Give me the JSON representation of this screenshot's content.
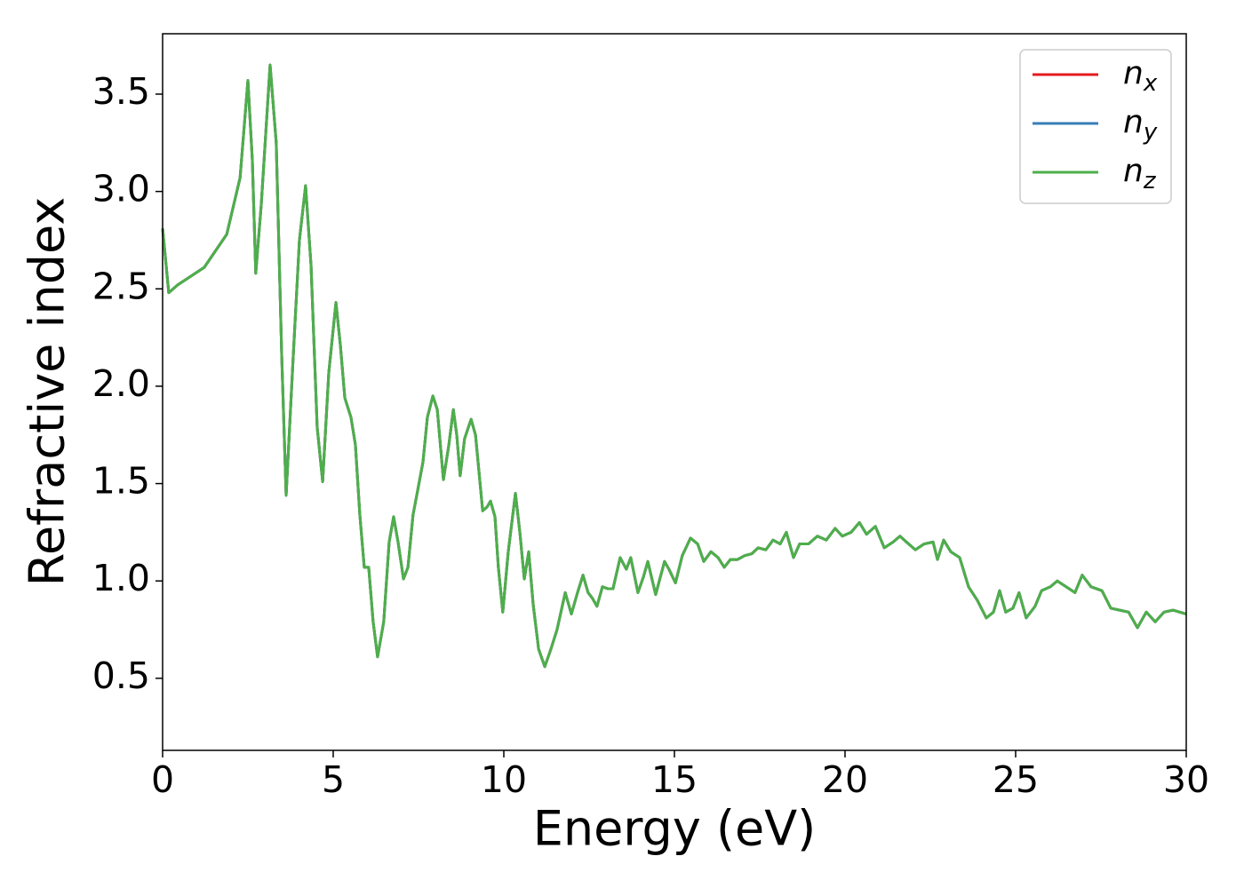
{
  "chart_data": {
    "type": "line",
    "xlabel": "Energy (eV)",
    "ylabel": "Refractive index",
    "x": [
      0,
      0.18,
      0.44,
      1.22,
      1.88,
      2.27,
      2.5,
      2.63,
      2.73,
      2.89,
      3.15,
      3.33,
      3.49,
      3.62,
      3.83,
      4.01,
      4.19,
      4.35,
      4.53,
      4.69,
      4.87,
      5.08,
      5.21,
      5.34,
      5.52,
      5.65,
      5.78,
      5.91,
      6.04,
      6.17,
      6.3,
      6.48,
      6.64,
      6.77,
      6.9,
      7.06,
      7.19,
      7.34,
      7.47,
      7.63,
      7.76,
      7.92,
      8.05,
      8.23,
      8.39,
      8.52,
      8.62,
      8.72,
      8.85,
      9.04,
      9.17,
      9.38,
      9.51,
      9.61,
      9.74,
      9.84,
      9.97,
      10.13,
      10.34,
      10.47,
      10.6,
      10.73,
      10.86,
      11.02,
      11.2,
      11.38,
      11.56,
      11.8,
      11.98,
      12.16,
      12.32,
      12.47,
      12.6,
      12.73,
      12.89,
      13.05,
      13.2,
      13.41,
      13.59,
      13.72,
      13.93,
      14.09,
      14.22,
      14.45,
      14.71,
      14.84,
      15.03,
      15.23,
      15.47,
      15.68,
      15.86,
      16.07,
      16.28,
      16.46,
      16.64,
      16.85,
      17.06,
      17.27,
      17.45,
      17.68,
      17.89,
      18.1,
      18.28,
      18.49,
      18.67,
      18.93,
      19.19,
      19.45,
      19.71,
      19.92,
      20.18,
      20.42,
      20.63,
      20.89,
      21.15,
      21.41,
      21.61,
      21.8,
      22.06,
      22.32,
      22.58,
      22.71,
      22.89,
      23.1,
      23.36,
      23.62,
      23.88,
      24.14,
      24.35,
      24.53,
      24.71,
      24.92,
      25.1,
      25.31,
      25.57,
      25.76,
      26.02,
      26.22,
      26.48,
      26.74,
      26.95,
      27.21,
      27.53,
      27.79,
      28.05,
      28.31,
      28.57,
      28.83,
      29.09,
      29.35,
      29.61,
      30
    ],
    "series": [
      {
        "name": "nx",
        "color": "#e41a1c",
        "values": [
          2.81,
          2.48,
          2.52,
          2.61,
          2.78,
          3.07,
          3.57,
          3.16,
          2.58,
          2.93,
          3.65,
          3.25,
          2.16,
          1.44,
          2.16,
          2.75,
          3.03,
          2.62,
          1.79,
          1.51,
          2.07,
          2.43,
          2.21,
          1.94,
          1.84,
          1.7,
          1.34,
          1.07,
          1.07,
          0.79,
          0.61,
          0.79,
          1.2,
          1.33,
          1.2,
          1.01,
          1.07,
          1.34,
          1.46,
          1.61,
          1.84,
          1.95,
          1.88,
          1.52,
          1.7,
          1.88,
          1.75,
          1.54,
          1.73,
          1.83,
          1.75,
          1.36,
          1.38,
          1.41,
          1.33,
          1.07,
          0.84,
          1.15,
          1.45,
          1.25,
          1.01,
          1.15,
          0.88,
          0.65,
          0.56,
          0.65,
          0.75,
          0.94,
          0.83,
          0.94,
          1.03,
          0.94,
          0.91,
          0.87,
          0.97,
          0.96,
          0.96,
          1.12,
          1.06,
          1.12,
          0.94,
          1.02,
          1.1,
          0.93,
          1.1,
          1.06,
          0.99,
          1.13,
          1.22,
          1.19,
          1.1,
          1.15,
          1.12,
          1.07,
          1.11,
          1.11,
          1.13,
          1.14,
          1.17,
          1.16,
          1.21,
          1.19,
          1.25,
          1.12,
          1.19,
          1.19,
          1.23,
          1.21,
          1.27,
          1.23,
          1.25,
          1.3,
          1.24,
          1.28,
          1.17,
          1.2,
          1.23,
          1.2,
          1.16,
          1.19,
          1.2,
          1.11,
          1.21,
          1.15,
          1.12,
          0.97,
          0.9,
          0.81,
          0.84,
          0.95,
          0.84,
          0.86,
          0.94,
          0.81,
          0.87,
          0.95,
          0.97,
          1.0,
          0.97,
          0.94,
          1.03,
          0.97,
          0.95,
          0.86,
          0.85,
          0.84,
          0.76,
          0.84,
          0.79,
          0.84,
          0.85,
          0.83
        ]
      },
      {
        "name": "ny",
        "color": "#377eb8",
        "values": [
          2.81,
          2.48,
          2.52,
          2.61,
          2.78,
          3.07,
          3.57,
          3.16,
          2.58,
          2.93,
          3.65,
          3.25,
          2.16,
          1.44,
          2.16,
          2.75,
          3.03,
          2.62,
          1.79,
          1.51,
          2.07,
          2.43,
          2.21,
          1.94,
          1.84,
          1.7,
          1.34,
          1.07,
          1.07,
          0.79,
          0.61,
          0.79,
          1.2,
          1.33,
          1.2,
          1.01,
          1.07,
          1.34,
          1.46,
          1.61,
          1.84,
          1.95,
          1.88,
          1.52,
          1.7,
          1.88,
          1.75,
          1.54,
          1.73,
          1.83,
          1.75,
          1.36,
          1.38,
          1.41,
          1.33,
          1.07,
          0.84,
          1.15,
          1.45,
          1.25,
          1.01,
          1.15,
          0.88,
          0.65,
          0.56,
          0.65,
          0.75,
          0.94,
          0.83,
          0.94,
          1.03,
          0.94,
          0.91,
          0.87,
          0.97,
          0.96,
          0.96,
          1.12,
          1.06,
          1.12,
          0.94,
          1.02,
          1.1,
          0.93,
          1.1,
          1.06,
          0.99,
          1.13,
          1.22,
          1.19,
          1.1,
          1.15,
          1.12,
          1.07,
          1.11,
          1.11,
          1.13,
          1.14,
          1.17,
          1.16,
          1.21,
          1.19,
          1.25,
          1.12,
          1.19,
          1.19,
          1.23,
          1.21,
          1.27,
          1.23,
          1.25,
          1.3,
          1.24,
          1.28,
          1.17,
          1.2,
          1.23,
          1.2,
          1.16,
          1.19,
          1.2,
          1.11,
          1.21,
          1.15,
          1.12,
          0.97,
          0.9,
          0.81,
          0.84,
          0.95,
          0.84,
          0.86,
          0.94,
          0.81,
          0.87,
          0.95,
          0.97,
          1.0,
          0.97,
          0.94,
          1.03,
          0.97,
          0.95,
          0.86,
          0.85,
          0.84,
          0.76,
          0.84,
          0.79,
          0.84,
          0.85,
          0.83
        ]
      },
      {
        "name": "nz",
        "color": "#4daf4a",
        "values": [
          2.81,
          2.48,
          2.52,
          2.61,
          2.78,
          3.07,
          3.57,
          3.16,
          2.58,
          2.93,
          3.65,
          3.25,
          2.16,
          1.44,
          2.16,
          2.75,
          3.03,
          2.62,
          1.79,
          1.51,
          2.07,
          2.43,
          2.21,
          1.94,
          1.84,
          1.7,
          1.34,
          1.07,
          1.07,
          0.79,
          0.61,
          0.79,
          1.2,
          1.33,
          1.2,
          1.01,
          1.07,
          1.34,
          1.46,
          1.61,
          1.84,
          1.95,
          1.88,
          1.52,
          1.7,
          1.88,
          1.75,
          1.54,
          1.73,
          1.83,
          1.75,
          1.36,
          1.38,
          1.41,
          1.33,
          1.07,
          0.84,
          1.15,
          1.45,
          1.25,
          1.01,
          1.15,
          0.88,
          0.65,
          0.56,
          0.65,
          0.75,
          0.94,
          0.83,
          0.94,
          1.03,
          0.94,
          0.91,
          0.87,
          0.97,
          0.96,
          0.96,
          1.12,
          1.06,
          1.12,
          0.94,
          1.02,
          1.1,
          0.93,
          1.1,
          1.06,
          0.99,
          1.13,
          1.22,
          1.19,
          1.1,
          1.15,
          1.12,
          1.07,
          1.11,
          1.11,
          1.13,
          1.14,
          1.17,
          1.16,
          1.21,
          1.19,
          1.25,
          1.12,
          1.19,
          1.19,
          1.23,
          1.21,
          1.27,
          1.23,
          1.25,
          1.3,
          1.24,
          1.28,
          1.17,
          1.2,
          1.23,
          1.2,
          1.16,
          1.19,
          1.2,
          1.11,
          1.21,
          1.15,
          1.12,
          0.97,
          0.9,
          0.81,
          0.84,
          0.95,
          0.84,
          0.86,
          0.94,
          0.81,
          0.87,
          0.95,
          0.97,
          1.0,
          0.97,
          0.94,
          1.03,
          0.97,
          0.95,
          0.86,
          0.85,
          0.84,
          0.76,
          0.84,
          0.79,
          0.84,
          0.85,
          0.83
        ]
      }
    ],
    "xlim": [
      0,
      30
    ],
    "xticks": [
      0,
      5,
      10,
      15,
      20,
      25,
      30
    ],
    "ylim": [
      0.13,
      3.81
    ],
    "yticks": [
      0.5,
      {
        "value": 1.0,
        "label": "1.0"
      },
      1.5,
      {
        "value": 2.0,
        "label": "2.0"
      },
      2.5,
      {
        "value": 3.0,
        "label": "3.0"
      },
      3.5
    ],
    "grid": false,
    "legend": "upper right"
  }
}
